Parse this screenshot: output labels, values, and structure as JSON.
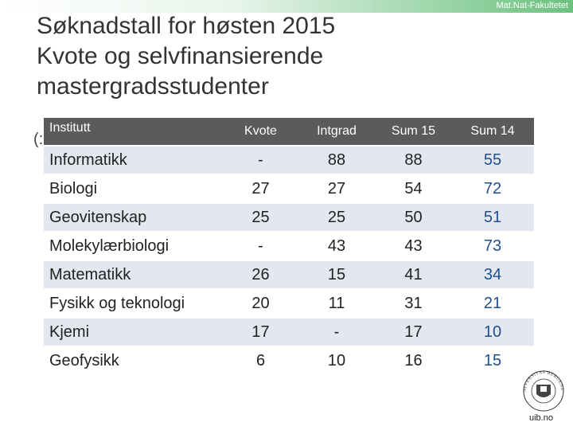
{
  "header": {
    "faculty": "Mat.Nat-Fakultetet"
  },
  "title_lines": [
    "Søknadstall for høsten 2015",
    "Kvote og selvfinansierende",
    "mastergradsstudenter"
  ],
  "stray_text": "(:",
  "table": {
    "headers": [
      "Institutt",
      "Kvote",
      "Intgrad",
      "Sum 15",
      "Sum 14"
    ],
    "rows": [
      [
        "Informatikk",
        "-",
        "88",
        "88",
        "55"
      ],
      [
        "Biologi",
        "27",
        "27",
        "54",
        "72"
      ],
      [
        "Geovitenskap",
        "25",
        "25",
        "50",
        "51"
      ],
      [
        "Molekylærbiologi",
        "-",
        "43",
        "43",
        "73"
      ],
      [
        "Matematikk",
        "26",
        "15",
        "41",
        "34"
      ],
      [
        "Fysikk og teknologi",
        "20",
        "11",
        "31",
        "21"
      ],
      [
        "Kjemi",
        "17",
        "-",
        "17",
        "10"
      ],
      [
        "Geofysikk",
        "6",
        "10",
        "16",
        "15"
      ]
    ]
  },
  "logo": {
    "seal_text": "UNIVERSITAS BERGENSIS",
    "caption": "uib.no"
  },
  "colors": {
    "header_bg": "#5b5b5b",
    "row_shade": "#e3e7ef",
    "sum14_text": "#1f4f8f",
    "topbar_green": "#6cc17f"
  }
}
